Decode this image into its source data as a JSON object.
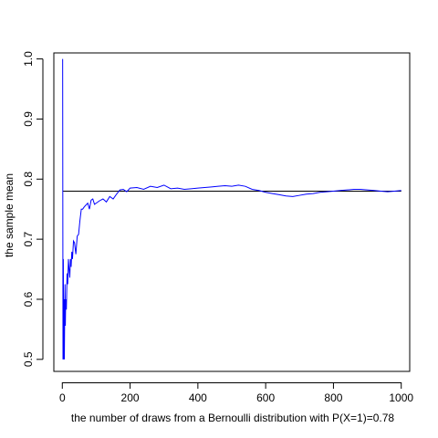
{
  "chart_data": {
    "type": "line",
    "title": "",
    "xlabel": "the number of draws from a Bernoulli distribution with P(X=1)=0.78",
    "ylabel": "the sample mean",
    "xlim": [
      -25,
      1025
    ],
    "ylim": [
      0.48,
      1.01
    ],
    "x_ticks": [
      0,
      200,
      400,
      600,
      800,
      1000
    ],
    "y_ticks": [
      0.5,
      0.6,
      0.7,
      0.8,
      0.9,
      1.0
    ],
    "x_tick_labels": [
      "0",
      "200",
      "400",
      "600",
      "800",
      "1000"
    ],
    "y_tick_labels": [
      "0.5",
      "0.6",
      "0.7",
      "0.8",
      "0.9",
      "1.0"
    ],
    "grid": false,
    "legend": "none",
    "reference_line": {
      "y": 0.78,
      "color": "#000000"
    },
    "series": [
      {
        "color": "#0000ff",
        "points": [
          [
            1,
            1.0
          ],
          [
            2,
            0.5
          ],
          [
            3,
            0.667
          ],
          [
            4,
            0.5
          ],
          [
            5,
            0.6
          ],
          [
            6,
            0.5
          ],
          [
            7,
            0.571
          ],
          [
            8,
            0.625
          ],
          [
            9,
            0.556
          ],
          [
            10,
            0.6
          ],
          [
            12,
            0.583
          ],
          [
            14,
            0.643
          ],
          [
            16,
            0.625
          ],
          [
            18,
            0.667
          ],
          [
            20,
            0.65
          ],
          [
            22,
            0.636
          ],
          [
            24,
            0.667
          ],
          [
            26,
            0.654
          ],
          [
            28,
            0.679
          ],
          [
            30,
            0.667
          ],
          [
            33,
            0.697
          ],
          [
            36,
            0.694
          ],
          [
            40,
            0.675
          ],
          [
            44,
            0.705
          ],
          [
            48,
            0.708
          ],
          [
            52,
            0.731
          ],
          [
            56,
            0.75
          ],
          [
            60,
            0.75
          ],
          [
            65,
            0.754
          ],
          [
            70,
            0.757
          ],
          [
            75,
            0.76
          ],
          [
            80,
            0.75
          ],
          [
            85,
            0.765
          ],
          [
            90,
            0.767
          ],
          [
            95,
            0.758
          ],
          [
            100,
            0.76
          ],
          [
            110,
            0.764
          ],
          [
            120,
            0.767
          ],
          [
            130,
            0.762
          ],
          [
            140,
            0.771
          ],
          [
            150,
            0.767
          ],
          [
            160,
            0.775
          ],
          [
            170,
            0.782
          ],
          [
            180,
            0.783
          ],
          [
            190,
            0.779
          ],
          [
            200,
            0.785
          ],
          [
            220,
            0.786
          ],
          [
            240,
            0.783
          ],
          [
            260,
            0.788
          ],
          [
            280,
            0.786
          ],
          [
            300,
            0.79
          ],
          [
            320,
            0.784
          ],
          [
            340,
            0.785
          ],
          [
            360,
            0.783
          ],
          [
            380,
            0.784
          ],
          [
            400,
            0.785
          ],
          [
            420,
            0.786
          ],
          [
            440,
            0.787
          ],
          [
            460,
            0.788
          ],
          [
            480,
            0.789
          ],
          [
            500,
            0.788
          ],
          [
            520,
            0.79
          ],
          [
            540,
            0.788
          ],
          [
            560,
            0.783
          ],
          [
            580,
            0.781
          ],
          [
            600,
            0.778
          ],
          [
            620,
            0.776
          ],
          [
            640,
            0.774
          ],
          [
            660,
            0.772
          ],
          [
            680,
            0.771
          ],
          [
            700,
            0.773
          ],
          [
            720,
            0.775
          ],
          [
            740,
            0.776
          ],
          [
            760,
            0.778
          ],
          [
            780,
            0.779
          ],
          [
            800,
            0.78
          ],
          [
            820,
            0.781
          ],
          [
            840,
            0.782
          ],
          [
            860,
            0.783
          ],
          [
            880,
            0.783
          ],
          [
            900,
            0.782
          ],
          [
            920,
            0.781
          ],
          [
            940,
            0.78
          ],
          [
            960,
            0.779
          ],
          [
            980,
            0.78
          ],
          [
            1000,
            0.781
          ]
        ]
      }
    ]
  }
}
